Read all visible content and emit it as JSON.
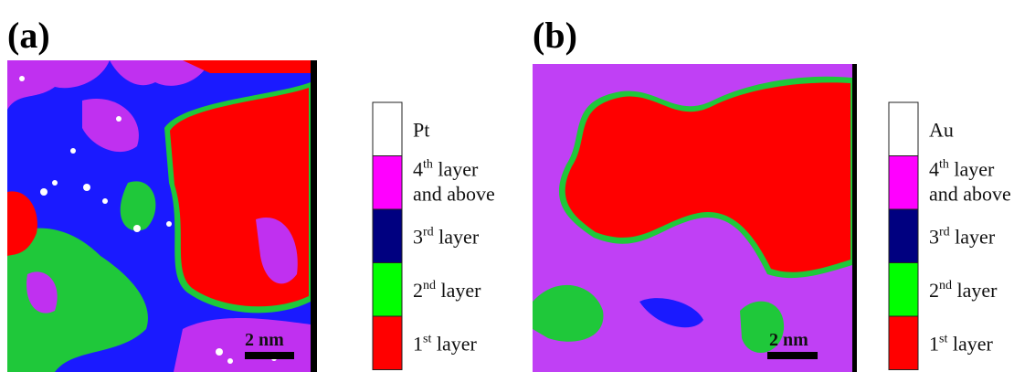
{
  "panels": [
    {
      "label": "(a)",
      "scale_bar": "2 nm",
      "legend": [
        {
          "color": "#ffffff",
          "text": "Pt"
        },
        {
          "color": "#ff00ff",
          "num": "4",
          "sup": "th",
          "text": " layer",
          "line2": "and above"
        },
        {
          "color": "#000080",
          "num": "3",
          "sup": "rd",
          "text": " layer"
        },
        {
          "color": "#00ff00",
          "num": "2",
          "sup": "nd",
          "text": " layer"
        },
        {
          "color": "#ff0000",
          "num": "1",
          "sup": "st",
          "text": " layer"
        }
      ]
    },
    {
      "label": "(b)",
      "scale_bar": "2 nm",
      "legend": [
        {
          "color": "#ffffff",
          "text": "Au"
        },
        {
          "color": "#ff00ff",
          "num": "4",
          "sup": "th",
          "text": " layer",
          "line2": "and above"
        },
        {
          "color": "#000080",
          "num": "3",
          "sup": "rd",
          "text": " layer"
        },
        {
          "color": "#00ff00",
          "num": "2",
          "sup": "nd",
          "text": " layer"
        },
        {
          "color": "#ff0000",
          "num": "1",
          "sup": "st",
          "text": " layer"
        }
      ]
    }
  ]
}
